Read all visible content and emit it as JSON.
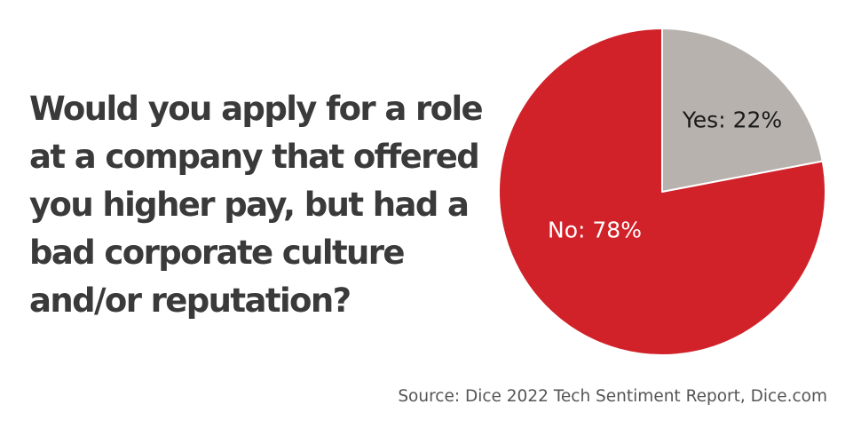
{
  "question": {
    "lines": [
      "Would you apply for a role",
      "at a company that offered",
      "you higher pay, but had a",
      "bad corporate culture",
      "and/or reputation?"
    ]
  },
  "chart_data": {
    "type": "pie",
    "title": "",
    "categories": [
      "Yes",
      "No"
    ],
    "values": [
      22,
      78
    ],
    "unit": "%",
    "labels": [
      "Yes: 22%",
      "No: 78%"
    ],
    "colors": [
      "#b7b2ad",
      "#d12229"
    ],
    "label_colors": [
      "#1a1a1a",
      "#ffffff"
    ],
    "start": "12 o'clock",
    "direction": "clockwise",
    "legend": "none"
  },
  "source": "Source: Dice 2022 Tech Sentiment Report, Dice.com"
}
